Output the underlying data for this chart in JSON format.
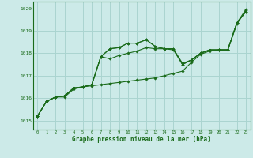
{
  "background_color": "#cceae8",
  "grid_color": "#aad4d0",
  "line_color": "#1a6b1a",
  "title": "Graphe pression niveau de la mer (hPa)",
  "xlim": [
    -0.5,
    23.5
  ],
  "ylim": [
    1014.6,
    1020.3
  ],
  "yticks": [
    1015,
    1016,
    1017,
    1018,
    1019,
    1020
  ],
  "xticks": [
    0,
    1,
    2,
    3,
    4,
    5,
    6,
    7,
    8,
    9,
    10,
    11,
    12,
    13,
    14,
    15,
    16,
    17,
    18,
    19,
    20,
    21,
    22,
    23
  ],
  "series": [
    [
      1015.2,
      1015.85,
      1016.05,
      1016.05,
      1016.4,
      1016.5,
      1016.55,
      1016.6,
      1016.65,
      1016.7,
      1016.75,
      1016.8,
      1016.85,
      1016.9,
      1017.0,
      1017.1,
      1017.2,
      1017.6,
      1017.95,
      1018.1,
      1018.15,
      1018.15,
      1019.3,
      1019.9
    ],
    [
      1015.2,
      1015.85,
      1016.05,
      1016.1,
      1016.45,
      1016.5,
      1016.6,
      1017.85,
      1017.75,
      1017.9,
      1018.0,
      1018.1,
      1018.25,
      1018.2,
      1018.2,
      1018.15,
      1017.5,
      1017.7,
      1018.0,
      1018.15,
      1018.15,
      1018.15,
      1019.35,
      1019.85
    ],
    [
      1015.2,
      1015.85,
      1016.05,
      1016.1,
      1016.45,
      1016.5,
      1016.6,
      1017.85,
      1018.2,
      1018.25,
      1018.45,
      1018.45,
      1018.6,
      1018.3,
      1018.2,
      1018.2,
      1017.5,
      1017.7,
      1018.0,
      1018.15,
      1018.15,
      1018.15,
      1019.35,
      1019.85
    ],
    [
      1015.2,
      1015.85,
      1016.05,
      1016.1,
      1016.45,
      1016.5,
      1016.6,
      1017.85,
      1018.2,
      1018.25,
      1018.45,
      1018.45,
      1018.6,
      1018.3,
      1018.2,
      1018.2,
      1017.55,
      1017.7,
      1018.0,
      1018.15,
      1018.15,
      1018.15,
      1019.35,
      1019.95
    ]
  ]
}
